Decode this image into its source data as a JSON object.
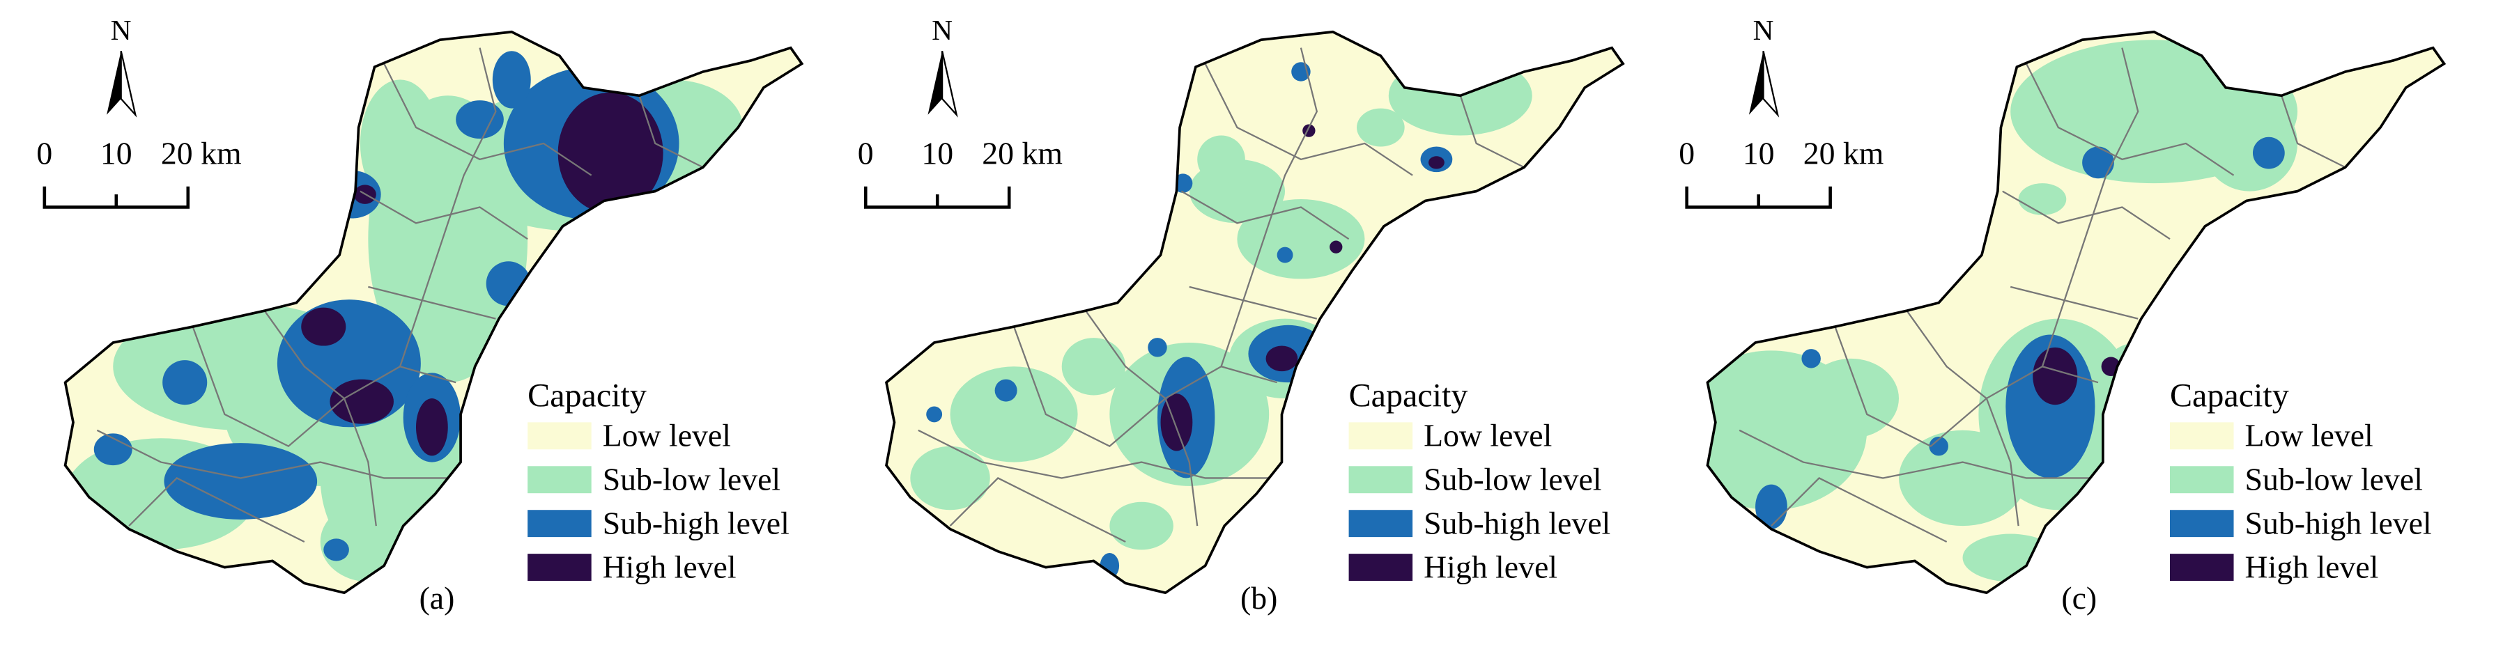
{
  "panels": [
    {
      "label": "(a)",
      "north": "N",
      "scale_labels": [
        "0",
        "10",
        "20 km"
      ],
      "legend": {
        "title": "Capacity",
        "items": [
          {
            "label": "Low level",
            "color": "#fbfbd5"
          },
          {
            "label": "Sub-low level",
            "color": "#a6e8bb"
          },
          {
            "label": "Sub-high level",
            "color": "#1d6db4"
          },
          {
            "label": "High level",
            "color": "#2b0c47"
          }
        ]
      }
    },
    {
      "label": "(b)",
      "north": "N",
      "scale_labels": [
        "0",
        "10",
        "20 km"
      ],
      "legend": {
        "title": "Capacity",
        "items": [
          {
            "label": "Low level",
            "color": "#fbfbd5"
          },
          {
            "label": "Sub-low level",
            "color": "#a6e8bb"
          },
          {
            "label": "Sub-high level",
            "color": "#1d6db4"
          },
          {
            "label": "High level",
            "color": "#2b0c47"
          }
        ]
      }
    },
    {
      "label": "(c)",
      "north": "N",
      "scale_labels": [
        "0",
        "10",
        "20 km"
      ],
      "legend": {
        "title": "Capacity",
        "items": [
          {
            "label": "Low level",
            "color": "#fbfbd5"
          },
          {
            "label": "Sub-low level",
            "color": "#a6e8bb"
          },
          {
            "label": "Sub-high level",
            "color": "#1d6db4"
          },
          {
            "label": "High level",
            "color": "#2b0c47"
          }
        ]
      }
    }
  ]
}
